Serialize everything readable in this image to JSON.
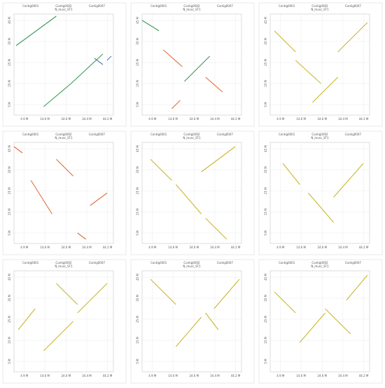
{
  "chart_data": [
    {
      "type": "dotplot",
      "title": "N_musc_ST1",
      "categories": [
        "Contig0001",
        "Contig0002",
        "Contig0007"
      ],
      "xlim": [
        0,
        47
      ],
      "ylim": [
        0,
        48
      ],
      "xticks": [
        {
          "value": 4.9,
          "label": "4.9 M"
        },
        {
          "value": 14.6,
          "label": "14.6 M"
        },
        {
          "value": 24.6,
          "label": "24.6 M"
        },
        {
          "value": 34.4,
          "label": "34.4 M"
        },
        {
          "value": 44.2,
          "label": "44.2 M"
        }
      ],
      "yticks": [
        {
          "value": 5,
          "label": "5 M"
        },
        {
          "value": 15,
          "label": "15 M"
        },
        {
          "value": 25,
          "label": "25 M"
        },
        {
          "value": 35,
          "label": "35 M"
        },
        {
          "value": 45,
          "label": "45 M"
        }
      ],
      "grid": true,
      "segments": [
        {
          "x": [
            1,
            20
          ],
          "values": [
            33,
            47
          ],
          "color": "#3f9a5c"
        },
        {
          "x": [
            14,
            27
          ],
          "values": [
            4,
            15
          ],
          "color": "#3f9a5c"
        },
        {
          "x": [
            27,
            42
          ],
          "values": [
            15,
            29
          ],
          "color": "#3f9a5c"
        },
        {
          "x": [
            38,
            42
          ],
          "values": [
            27,
            24
          ],
          "color": "#4a7fb0"
        },
        {
          "x": [
            44,
            46
          ],
          "values": [
            26,
            28
          ],
          "color": "#4a7fb0"
        }
      ]
    },
    {
      "type": "dotplot",
      "title": "N_musc_ST1",
      "categories": [
        "Contig0001",
        "Contig0002",
        "Contig0007"
      ],
      "xlim": [
        0,
        47
      ],
      "ylim": [
        0,
        48
      ],
      "xticks": [
        {
          "value": 4.9,
          "label": "4.9 M"
        },
        {
          "value": 14.6,
          "label": "14.6 M"
        },
        {
          "value": 24.6,
          "label": "24.6 M"
        },
        {
          "value": 34.4,
          "label": "34.4 M"
        },
        {
          "value": 44.2,
          "label": "44.2 M"
        }
      ],
      "yticks": [
        {
          "value": 5,
          "label": "5 M"
        },
        {
          "value": 15,
          "label": "15 M"
        },
        {
          "value": 25,
          "label": "25 M"
        },
        {
          "value": 35,
          "label": "35 M"
        },
        {
          "value": 45,
          "label": "45 M"
        }
      ],
      "grid": true,
      "segments": [
        {
          "x": [
            0,
            8
          ],
          "values": [
            45,
            40
          ],
          "color": "#3f9a5c"
        },
        {
          "x": [
            10,
            19
          ],
          "values": [
            31,
            23
          ],
          "color": "#e0703a"
        },
        {
          "x": [
            20,
            32
          ],
          "values": [
            16,
            28
          ],
          "color": "#3f9a5c"
        },
        {
          "x": [
            30,
            38
          ],
          "values": [
            18,
            11
          ],
          "color": "#e0703a"
        },
        {
          "x": [
            14,
            18
          ],
          "values": [
            3,
            7
          ],
          "color": "#e0703a"
        }
      ]
    },
    {
      "type": "dotplot",
      "title": "N_musc_ST1",
      "categories": [
        "Contig0001",
        "Contig0002",
        "Contig0007"
      ],
      "xlim": [
        0,
        47
      ],
      "ylim": [
        0,
        48
      ],
      "xticks": [
        {
          "value": 4.9,
          "label": "4.9 M"
        },
        {
          "value": 14.6,
          "label": "14.6 M"
        },
        {
          "value": 24.6,
          "label": "24.6 M"
        },
        {
          "value": 34.4,
          "label": "34.4 M"
        },
        {
          "value": 44.2,
          "label": "44.2 M"
        }
      ],
      "yticks": [
        {
          "value": 5,
          "label": "5 M"
        },
        {
          "value": 15,
          "label": "15 M"
        },
        {
          "value": 25,
          "label": "25 M"
        },
        {
          "value": 35,
          "label": "35 M"
        },
        {
          "value": 45,
          "label": "45 M"
        }
      ],
      "grid": true,
      "segments": [
        {
          "x": [
            2,
            12
          ],
          "values": [
            40,
            30
          ],
          "color": "#c9b92e"
        },
        {
          "x": [
            12,
            24
          ],
          "values": [
            26,
            15
          ],
          "color": "#c9b92e"
        },
        {
          "x": [
            20,
            32
          ],
          "values": [
            6,
            18
          ],
          "color": "#c9b92e"
        },
        {
          "x": [
            32,
            46
          ],
          "values": [
            30,
            44
          ],
          "color": "#c9b92e"
        }
      ]
    },
    {
      "type": "dotplot",
      "title": "N_musc_ST1",
      "categories": [
        "Contig0001",
        "Contig0002",
        "Contig0007"
      ],
      "xlim": [
        0,
        47
      ],
      "ylim": [
        0,
        48
      ],
      "xticks": [
        {
          "value": 4.9,
          "label": "4.9 M"
        },
        {
          "value": 14.6,
          "label": "14.6 M"
        },
        {
          "value": 24.6,
          "label": "24.6 M"
        },
        {
          "value": 34.4,
          "label": "34.4 M"
        },
        {
          "value": 44.2,
          "label": "44.2 M"
        }
      ],
      "yticks": [
        {
          "value": 5,
          "label": "5 M"
        },
        {
          "value": 15,
          "label": "15 M"
        },
        {
          "value": 25,
          "label": "25 M"
        },
        {
          "value": 35,
          "label": "35 M"
        },
        {
          "value": 45,
          "label": "45 M"
        }
      ],
      "grid": true,
      "segments": [
        {
          "x": [
            0,
            4
          ],
          "values": [
            46,
            43
          ],
          "color": "#e0703a"
        },
        {
          "x": [
            8,
            18
          ],
          "values": [
            30,
            14
          ],
          "color": "#e0703a"
        },
        {
          "x": [
            20,
            28
          ],
          "values": [
            40,
            32
          ],
          "color": "#e0703a"
        },
        {
          "x": [
            30,
            34
          ],
          "values": [
            5,
            2
          ],
          "color": "#e0703a"
        },
        {
          "x": [
            36,
            44
          ],
          "values": [
            18,
            24
          ],
          "color": "#e0703a"
        }
      ]
    },
    {
      "type": "dotplot",
      "title": "N_musc_ST1",
      "categories": [
        "Contig0001",
        "Contig0002",
        "Contig0007"
      ],
      "xlim": [
        0,
        47
      ],
      "ylim": [
        0,
        48
      ],
      "xticks": [
        {
          "value": 4.9,
          "label": "4.9 M"
        },
        {
          "value": 14.6,
          "label": "14.6 M"
        },
        {
          "value": 24.6,
          "label": "24.6 M"
        },
        {
          "value": 34.4,
          "label": "34.4 M"
        },
        {
          "value": 44.2,
          "label": "44.2 M"
        }
      ],
      "yticks": [
        {
          "value": 5,
          "label": "5 M"
        },
        {
          "value": 15,
          "label": "15 M"
        },
        {
          "value": 25,
          "label": "25 M"
        },
        {
          "value": 35,
          "label": "35 M"
        },
        {
          "value": 45,
          "label": "45 M"
        }
      ],
      "grid": true,
      "segments": [
        {
          "x": [
            4,
            14
          ],
          "values": [
            40,
            30
          ],
          "color": "#c9b92e"
        },
        {
          "x": [
            16,
            28
          ],
          "values": [
            28,
            14
          ],
          "color": "#c9b92e"
        },
        {
          "x": [
            28,
            44
          ],
          "values": [
            34,
            46
          ],
          "color": "#c9b92e"
        },
        {
          "x": [
            30,
            40
          ],
          "values": [
            12,
            2
          ],
          "color": "#c9b92e"
        }
      ]
    },
    {
      "type": "dotplot",
      "title": "N_musc_ST1",
      "categories": [
        "Contig0001",
        "Contig0002",
        "Contig0007"
      ],
      "xlim": [
        0,
        47
      ],
      "ylim": [
        0,
        48
      ],
      "xticks": [
        {
          "value": 4.9,
          "label": "4.9 M"
        },
        {
          "value": 14.6,
          "label": "14.6 M"
        },
        {
          "value": 24.6,
          "label": "24.6 M"
        },
        {
          "value": 34.4,
          "label": "34.4 M"
        },
        {
          "value": 44.2,
          "label": "44.2 M"
        }
      ],
      "yticks": [
        {
          "value": 5,
          "label": "5 M"
        },
        {
          "value": 15,
          "label": "15 M"
        },
        {
          "value": 25,
          "label": "25 M"
        },
        {
          "value": 35,
          "label": "35 M"
        },
        {
          "value": 45,
          "label": "45 M"
        }
      ],
      "grid": true,
      "segments": [
        {
          "x": [
            6,
            14
          ],
          "values": [
            38,
            28
          ],
          "color": "#c9b92e"
        },
        {
          "x": [
            18,
            30
          ],
          "values": [
            24,
            10
          ],
          "color": "#c9b92e"
        },
        {
          "x": [
            30,
            44
          ],
          "values": [
            22,
            38
          ],
          "color": "#c9b92e"
        }
      ]
    },
    {
      "type": "dotplot",
      "title": "N_musc_ST1",
      "categories": [
        "Contig0001",
        "Contig0002",
        "Contig0007"
      ],
      "xlim": [
        0,
        47
      ],
      "ylim": [
        0,
        48
      ],
      "xticks": [
        {
          "value": 4.9,
          "label": "4.9 M"
        },
        {
          "value": 14.6,
          "label": "14.6 M"
        },
        {
          "value": 24.6,
          "label": "24.6 M"
        },
        {
          "value": 34.4,
          "label": "34.4 M"
        },
        {
          "value": 44.2,
          "label": "44.2 M"
        }
      ],
      "yticks": [
        {
          "value": 5,
          "label": "5 M"
        },
        {
          "value": 15,
          "label": "15 M"
        },
        {
          "value": 25,
          "label": "25 M"
        },
        {
          "value": 35,
          "label": "35 M"
        },
        {
          "value": 45,
          "label": "45 M"
        }
      ],
      "grid": true,
      "segments": [
        {
          "x": [
            2,
            10
          ],
          "values": [
            20,
            30
          ],
          "color": "#c9b92e"
        },
        {
          "x": [
            14,
            28
          ],
          "values": [
            10,
            24
          ],
          "color": "#c9b92e"
        },
        {
          "x": [
            20,
            30
          ],
          "values": [
            42,
            32
          ],
          "color": "#c9b92e"
        },
        {
          "x": [
            30,
            44
          ],
          "values": [
            28,
            42
          ],
          "color": "#c9b92e"
        }
      ]
    },
    {
      "type": "dotplot",
      "title": "N_musc_ST1",
      "categories": [
        "Contig0001",
        "Contig0002",
        "Contig0007"
      ],
      "xlim": [
        0,
        47
      ],
      "ylim": [
        0,
        48
      ],
      "xticks": [
        {
          "value": 4.9,
          "label": "4.9 M"
        },
        {
          "value": 14.6,
          "label": "14.6 M"
        },
        {
          "value": 24.6,
          "label": "24.6 M"
        },
        {
          "value": 34.4,
          "label": "34.4 M"
        },
        {
          "value": 44.2,
          "label": "44.2 M"
        }
      ],
      "yticks": [
        {
          "value": 5,
          "label": "5 M"
        },
        {
          "value": 15,
          "label": "15 M"
        },
        {
          "value": 25,
          "label": "25 M"
        },
        {
          "value": 35,
          "label": "35 M"
        },
        {
          "value": 45,
          "label": "45 M"
        }
      ],
      "grid": true,
      "segments": [
        {
          "x": [
            4,
            16
          ],
          "values": [
            44,
            32
          ],
          "color": "#c9b92e"
        },
        {
          "x": [
            16,
            28
          ],
          "values": [
            12,
            26
          ],
          "color": "#c9b92e"
        },
        {
          "x": [
            30,
            36
          ],
          "values": [
            28,
            20
          ],
          "color": "#c9b92e"
        },
        {
          "x": [
            34,
            46
          ],
          "values": [
            30,
            44
          ],
          "color": "#c9b92e"
        }
      ]
    },
    {
      "type": "dotplot",
      "title": "N_musc_ST1",
      "categories": [
        "Contig0001",
        "Contig0002",
        "Contig0007"
      ],
      "xlim": [
        0,
        47
      ],
      "ylim": [
        0,
        48
      ],
      "xticks": [
        {
          "value": 4.9,
          "label": "4.9 M"
        },
        {
          "value": 14.6,
          "label": "14.6 M"
        },
        {
          "value": 24.6,
          "label": "24.6 M"
        },
        {
          "value": 34.4,
          "label": "34.4 M"
        },
        {
          "value": 44.2,
          "label": "44.2 M"
        }
      ],
      "yticks": [
        {
          "value": 5,
          "label": "5 M"
        },
        {
          "value": 15,
          "label": "15 M"
        },
        {
          "value": 25,
          "label": "25 M"
        },
        {
          "value": 35,
          "label": "35 M"
        },
        {
          "value": 45,
          "label": "45 M"
        }
      ],
      "grid": true,
      "segments": [
        {
          "x": [
            2,
            12
          ],
          "values": [
            38,
            28
          ],
          "color": "#c9b92e"
        },
        {
          "x": [
            14,
            26
          ],
          "values": [
            14,
            28
          ],
          "color": "#c9b92e"
        },
        {
          "x": [
            26,
            38
          ],
          "values": [
            30,
            18
          ],
          "color": "#c9b92e"
        },
        {
          "x": [
            36,
            46
          ],
          "values": [
            34,
            46
          ],
          "color": "#c9b92e"
        }
      ]
    }
  ]
}
